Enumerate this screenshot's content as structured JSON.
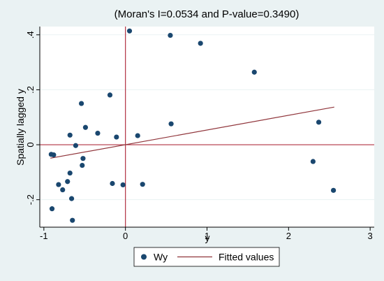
{
  "chart_data": {
    "type": "scatter",
    "title": "(Moran's I=0.0534 and P-value=0.3490)",
    "xlabel": "y",
    "ylabel": "Spatially lagged y",
    "xlim": [
      -1.05,
      3.05
    ],
    "ylim": [
      -0.3,
      0.43
    ],
    "x_ticks": [
      -1,
      0,
      1,
      2,
      3
    ],
    "x_tick_labels": [
      "-1",
      "0",
      "1",
      "2",
      "3"
    ],
    "y_ticks": [
      -0.2,
      0,
      0.2,
      0.4
    ],
    "y_tick_labels": [
      "-.2",
      "0",
      ".2",
      ".4"
    ],
    "reference_lines": {
      "x": 0,
      "y": 0,
      "color": "#b03040"
    },
    "grid": "horizontal",
    "legend_position": "bottom",
    "series": [
      {
        "name": "Wy",
        "kind": "scatter",
        "color": "#1a476f",
        "points": [
          [
            0.05,
            0.414
          ],
          [
            0.55,
            0.398
          ],
          [
            0.92,
            0.369
          ],
          [
            1.58,
            0.264
          ],
          [
            -0.19,
            0.181
          ],
          [
            -0.54,
            0.15
          ],
          [
            -0.49,
            0.063
          ],
          [
            -0.34,
            0.042
          ],
          [
            -0.11,
            0.028
          ],
          [
            0.15,
            0.033
          ],
          [
            0.56,
            0.076
          ],
          [
            2.37,
            0.082
          ],
          [
            -0.68,
            0.035
          ],
          [
            -0.61,
            -0.003
          ],
          [
            -0.52,
            -0.05
          ],
          [
            -0.53,
            -0.075
          ],
          [
            -0.91,
            -0.035
          ],
          [
            -0.88,
            -0.037
          ],
          [
            -0.68,
            -0.103
          ],
          [
            -0.71,
            -0.134
          ],
          [
            -0.82,
            -0.145
          ],
          [
            -0.77,
            -0.164
          ],
          [
            -0.66,
            -0.196
          ],
          [
            -0.9,
            -0.233
          ],
          [
            -0.65,
            -0.275
          ],
          [
            -0.16,
            -0.141
          ],
          [
            -0.03,
            -0.146
          ],
          [
            0.21,
            -0.144
          ],
          [
            2.3,
            -0.061
          ],
          [
            2.55,
            -0.166
          ]
        ]
      },
      {
        "name": "Fitted values",
        "kind": "line",
        "color": "#90353b",
        "points": [
          [
            -0.92,
            -0.049
          ],
          [
            2.56,
            0.137
          ]
        ]
      }
    ]
  }
}
